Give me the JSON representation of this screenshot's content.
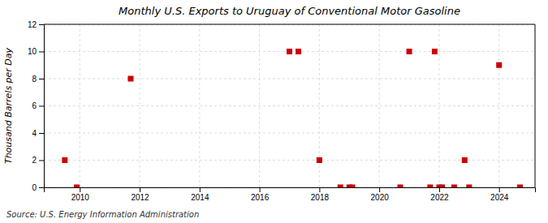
{
  "chart_data": {
    "type": "scatter",
    "title": "Monthly U.S. Exports to Uruguay of Conventional Motor Gasoline",
    "ylabel": "Thousand Barrels per Day",
    "source": "Source: U.S. Energy Information Administration",
    "x": [
      2009.5,
      2009.9,
      2011.7,
      2017.0,
      2017.3,
      2018.0,
      2018.7,
      2019.0,
      2019.1,
      2020.7,
      2021.0,
      2021.7,
      2021.85,
      2022.0,
      2022.1,
      2022.5,
      2022.85,
      2023.0,
      2024.0,
      2024.7
    ],
    "values": [
      2,
      0,
      8,
      10,
      10,
      2,
      0,
      0,
      0,
      0,
      10,
      0,
      10,
      0,
      0,
      0,
      2,
      0,
      9,
      0
    ],
    "color": "#cc0000",
    "marker": "square",
    "xlim": [
      2008.8,
      2025.2
    ],
    "ylim": [
      0,
      12
    ],
    "xticks": [
      2010,
      2012,
      2014,
      2016,
      2018,
      2020,
      2022,
      2024
    ],
    "yticks": [
      0,
      2,
      4,
      6,
      8,
      10,
      12
    ],
    "grid": true
  }
}
